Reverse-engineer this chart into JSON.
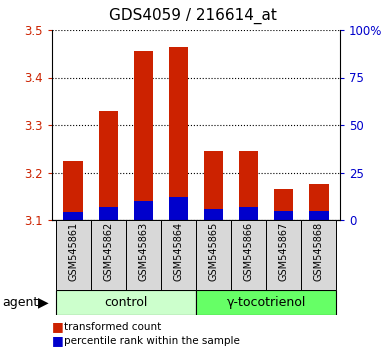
{
  "title": "GDS4059 / 216614_at",
  "samples": [
    "GSM545861",
    "GSM545862",
    "GSM545863",
    "GSM545864",
    "GSM545865",
    "GSM545866",
    "GSM545867",
    "GSM545868"
  ],
  "red_values": [
    3.225,
    3.33,
    3.455,
    3.465,
    3.245,
    3.245,
    3.165,
    3.175
  ],
  "blue_values_pct": [
    4.0,
    7.0,
    10.0,
    12.0,
    6.0,
    7.0,
    5.0,
    5.0
  ],
  "ylim_left": [
    3.1,
    3.5
  ],
  "ylim_right": [
    0,
    100
  ],
  "yticks_left": [
    3.1,
    3.2,
    3.3,
    3.4,
    3.5
  ],
  "yticks_right": [
    0,
    25,
    50,
    75,
    100
  ],
  "ytick_labels_right": [
    "0",
    "25",
    "50",
    "75",
    "100%"
  ],
  "groups": [
    {
      "label": "control",
      "indices": [
        0,
        1,
        2,
        3
      ],
      "color": "#ccffcc"
    },
    {
      "label": "γ-tocotrienol",
      "indices": [
        4,
        5,
        6,
        7
      ],
      "color": "#66ff66"
    }
  ],
  "bar_width": 0.55,
  "red_color": "#cc2200",
  "blue_color": "#0000cc",
  "agent_label": "agent",
  "legend_red": "transformed count",
  "legend_blue": "percentile rank within the sample",
  "title_fontsize": 11,
  "tick_fontsize": 8.5,
  "label_fontsize": 9,
  "sample_fontsize": 7,
  "group_fontsize": 9
}
